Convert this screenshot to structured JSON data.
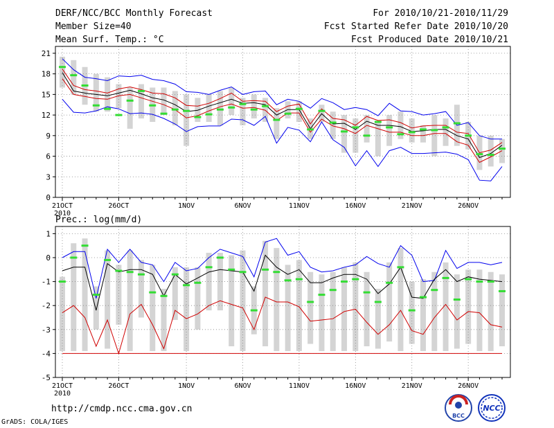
{
  "header": {
    "title": "DERF/NCC/BCC Monthly Forecast",
    "member_size": "Member Size=40",
    "panel1_label": "Mean Surf. Temp.: °C",
    "period": "For 2010/10/21-2010/11/29",
    "started": "Fcst Started Refer Date 2010/10/20",
    "produced": "Fcst Produced Date 2010/10/21"
  },
  "footer": {
    "url": "http://cmdp.ncc.cma.gov.cn",
    "grads": "GrADS: COLA/IGES",
    "logo_bcc": "BCC",
    "logo_ncc": "NCC"
  },
  "colors": {
    "box": "#d4d4d4",
    "median": "#000000",
    "envelope": "#0000ee",
    "quartile": "#d00000",
    "obs": "#33dd33",
    "grid": "#888888"
  },
  "chart_data": [
    {
      "type": "boxplot-line",
      "title": "Mean Surf. Temp.: °C",
      "ylim": [
        0,
        22
      ],
      "yticks": [
        0,
        3,
        6,
        9,
        12,
        15,
        18,
        21
      ],
      "x_labels": [
        "21OCT",
        "26OCT",
        "1NOV",
        "6NOV",
        "11NOV",
        "16NOV",
        "21NOV",
        "26NOV"
      ],
      "x_label_days": [
        1,
        6,
        12,
        17,
        22,
        27,
        32,
        37
      ],
      "year_label": "2010",
      "days": 40,
      "series": [
        {
          "name": "max",
          "color": "#0000ee",
          "values": [
            20.2,
            18.6,
            17.5,
            17.3,
            17.0,
            17.7,
            17.6,
            17.8,
            17.2,
            17.0,
            16.5,
            15.4,
            15.3,
            15.0,
            15.6,
            16.1,
            15.0,
            15.4,
            15.5,
            13.5,
            14.3,
            14.0,
            13.0,
            14.4,
            13.8,
            12.8,
            13.1,
            12.8,
            11.9,
            13.7,
            12.6,
            12.5,
            12.0,
            12.2,
            12.5,
            10.5,
            10.9,
            9.0,
            8.5,
            8.5
          ]
        },
        {
          "name": "upper",
          "color": "#d00000",
          "values": [
            18.7,
            16.3,
            15.7,
            15.5,
            15.2,
            15.8,
            16.1,
            15.7,
            15.2,
            15.1,
            14.5,
            13.4,
            13.3,
            13.7,
            14.4,
            15.2,
            14.0,
            14.1,
            14.0,
            12.5,
            13.3,
            13.6,
            10.7,
            12.9,
            11.5,
            11.3,
            10.5,
            11.8,
            11.2,
            11.3,
            10.9,
            10.1,
            10.4,
            10.5,
            10.5,
            9.5,
            9.3,
            6.5,
            6.9,
            8.0
          ]
        },
        {
          "name": "median",
          "color": "#000000",
          "values": [
            18.2,
            15.5,
            15.2,
            15.0,
            14.8,
            15.2,
            15.6,
            15.1,
            14.5,
            14.2,
            13.5,
            12.5,
            12.7,
            13.3,
            13.8,
            14.3,
            13.7,
            13.8,
            13.5,
            12.0,
            12.8,
            12.8,
            10.0,
            12.2,
            10.7,
            10.8,
            9.9,
            11.1,
            10.5,
            10.5,
            10.3,
            9.6,
            9.7,
            9.9,
            9.9,
            9.0,
            8.5,
            5.8,
            6.4,
            7.6
          ]
        },
        {
          "name": "lower",
          "color": "#d00000",
          "values": [
            17.3,
            15.0,
            14.7,
            14.4,
            14.3,
            14.8,
            15.0,
            14.5,
            14.0,
            13.5,
            12.8,
            11.6,
            11.9,
            12.6,
            13.2,
            13.6,
            13.0,
            13.1,
            12.7,
            11.2,
            12.3,
            12.3,
            9.5,
            11.4,
            10.4,
            10.0,
            9.3,
            10.5,
            10.0,
            9.5,
            9.5,
            9.0,
            9.0,
            9.3,
            9.3,
            8.1,
            7.6,
            5.1,
            5.9,
            6.8
          ]
        },
        {
          "name": "min",
          "color": "#0000ee",
          "values": [
            14.3,
            12.4,
            12.3,
            12.6,
            13.2,
            12.9,
            12.2,
            12.3,
            12.1,
            11.5,
            10.7,
            9.6,
            10.3,
            10.4,
            10.4,
            11.4,
            11.3,
            10.5,
            11.8,
            7.9,
            10.2,
            9.8,
            8.1,
            11.0,
            8.4,
            7.3,
            4.6,
            6.8,
            4.5,
            6.8,
            7.3,
            6.4,
            6.4,
            6.5,
            6.6,
            6.3,
            5.5,
            2.5,
            2.4,
            4.5
          ]
        }
      ],
      "box_ranges": [
        [
          16.0,
          20.5
        ],
        [
          15.0,
          20.0
        ],
        [
          13.5,
          19.0
        ],
        [
          12.5,
          18.0
        ],
        [
          12.5,
          17.5
        ],
        [
          13.0,
          16.5
        ],
        [
          10.0,
          16.0
        ],
        [
          11.5,
          16.5
        ],
        [
          11.0,
          16.0
        ],
        [
          12.0,
          16.0
        ],
        [
          10.5,
          15.5
        ],
        [
          7.5,
          15.0
        ],
        [
          11.0,
          14.5
        ],
        [
          11.0,
          15.0
        ],
        [
          10.5,
          15.5
        ],
        [
          12.0,
          16.0
        ],
        [
          10.5,
          14.5
        ],
        [
          11.5,
          15.0
        ],
        [
          11.0,
          14.5
        ],
        [
          8.5,
          13.0
        ],
        [
          11.5,
          14.0
        ],
        [
          11.0,
          14.0
        ],
        [
          8.5,
          11.5
        ],
        [
          11.0,
          13.5
        ],
        [
          8.5,
          12.5
        ],
        [
          6.5,
          12.0
        ],
        [
          6.5,
          11.5
        ],
        [
          8.0,
          12.0
        ],
        [
          6.0,
          11.0
        ],
        [
          7.5,
          12.0
        ],
        [
          8.5,
          12.5
        ],
        [
          8.0,
          11.5
        ],
        [
          8.0,
          10.5
        ],
        [
          6.0,
          12.0
        ],
        [
          7.5,
          11.5
        ],
        [
          7.5,
          13.5
        ],
        [
          7.0,
          11.0
        ],
        [
          4.0,
          9.0
        ],
        [
          4.5,
          9.0
        ],
        [
          5.0,
          8.5
        ]
      ],
      "obs": [
        19.0,
        17.8,
        16.3,
        13.4,
        12.9,
        12.0,
        14.1,
        15.5,
        13.4,
        12.2,
        12.8,
        12.6,
        11.7,
        12.1,
        12.8,
        13.1,
        13.6,
        12.8,
        13.3,
        11.3,
        12.2,
        12.9,
        9.9,
        12.6,
        10.9,
        9.6,
        10.2,
        9.0,
        11.0,
        10.2,
        9.2,
        9.5,
        9.9,
        9.8,
        10.2,
        10.8,
        9.0,
        6.3,
        6.2,
        7.1
      ]
    },
    {
      "type": "boxplot-line",
      "title": "Prec.: log(mm/d)",
      "ylim": [
        -5,
        1.3
      ],
      "yticks": [
        -5,
        -4,
        -3,
        -2,
        -1,
        0,
        1
      ],
      "x_labels": [
        "21OCT",
        "26OCT",
        "1NOV",
        "6NOV",
        "11NOV",
        "16NOV",
        "21NOV",
        "26NOV"
      ],
      "x_label_days": [
        1,
        6,
        12,
        17,
        22,
        27,
        32,
        37
      ],
      "year_label": "2010",
      "days": 40,
      "series": [
        {
          "name": "max",
          "color": "#0000ee",
          "values": [
            0.0,
            0.25,
            0.25,
            -1.7,
            0.35,
            -0.2,
            0.35,
            -0.2,
            -0.3,
            -1.0,
            -0.2,
            -0.55,
            -0.45,
            0.0,
            0.35,
            0.2,
            0.05,
            -0.8,
            0.65,
            0.8,
            0.1,
            0.25,
            -0.4,
            -0.6,
            -0.55,
            -0.4,
            -0.3,
            0.05,
            -0.25,
            -0.4,
            0.5,
            0.1,
            -1.0,
            -0.95,
            0.3,
            -0.45,
            -0.2,
            -0.2,
            -0.3,
            -0.2
          ]
        },
        {
          "name": "median",
          "color": "#000000",
          "values": [
            -0.55,
            -0.4,
            -0.4,
            -2.2,
            -0.25,
            -0.6,
            -0.5,
            -0.5,
            -0.7,
            -1.6,
            -0.7,
            -1.1,
            -0.85,
            -0.6,
            -0.5,
            -0.55,
            -0.6,
            -1.4,
            0.1,
            -0.4,
            -0.7,
            -0.5,
            -1.05,
            -1.05,
            -0.85,
            -0.7,
            -0.7,
            -0.9,
            -1.5,
            -1.1,
            -0.4,
            -1.65,
            -1.7,
            -0.9,
            -0.5,
            -1.0,
            -0.8,
            -0.9,
            -0.95,
            -1.0
          ]
        },
        {
          "name": "lower",
          "color": "#d00000",
          "values": [
            -2.3,
            -2.0,
            -2.5,
            -3.7,
            -2.6,
            -4.0,
            -2.35,
            -1.95,
            -2.8,
            -3.8,
            -2.2,
            -2.55,
            -2.35,
            -2.0,
            -1.8,
            -1.95,
            -2.1,
            -3.0,
            -1.65,
            -1.85,
            -1.85,
            -2.05,
            -2.65,
            -2.6,
            -2.55,
            -2.25,
            -2.15,
            -2.7,
            -3.2,
            -2.8,
            -2.2,
            -3.05,
            -3.2,
            -2.5,
            -1.95,
            -2.6,
            -2.25,
            -2.3,
            -2.8,
            -2.9
          ]
        },
        {
          "name": "min",
          "color": "#d00000",
          "values": [
            -4.0,
            -4.0,
            -4.0,
            -4.0,
            -4.0,
            -4.0,
            -4.0,
            -4.0,
            -4.0,
            -4.0,
            -4.0,
            -4.0,
            -4.0,
            -4.0,
            -4.0,
            -4.0,
            -4.0,
            -4.0,
            -4.0,
            -4.0,
            -4.0,
            -4.0,
            -4.0,
            -4.0,
            -4.0,
            -4.0,
            -4.0,
            -4.0,
            -4.0,
            -4.0,
            -4.0,
            -4.0,
            -4.0,
            -4.0,
            -4.0,
            -4.0,
            -4.0,
            -4.0,
            -4.0,
            -4.0
          ]
        }
      ],
      "box_ranges": [
        [
          -3.9,
          -0.8
        ],
        [
          -3.9,
          0.6
        ],
        [
          -3.9,
          0.8
        ],
        [
          -3.0,
          -1.2
        ],
        [
          -3.8,
          0.3
        ],
        [
          -2.8,
          -0.3
        ],
        [
          -3.9,
          0.3
        ],
        [
          -2.5,
          -0.1
        ],
        [
          -3.9,
          -0.3
        ],
        [
          -3.9,
          -1.3
        ],
        [
          -2.6,
          -0.4
        ],
        [
          -3.9,
          -0.4
        ],
        [
          -3.0,
          -0.4
        ],
        [
          -2.2,
          0.2
        ],
        [
          -2.2,
          0.2
        ],
        [
          -3.7,
          0.1
        ],
        [
          -3.9,
          0.3
        ],
        [
          -3.2,
          -1.2
        ],
        [
          -3.7,
          0.7
        ],
        [
          -3.9,
          0.4
        ],
        [
          -3.9,
          -0.3
        ],
        [
          -3.9,
          -0.1
        ],
        [
          -3.6,
          -0.6
        ],
        [
          -3.9,
          -0.7
        ],
        [
          -3.9,
          -0.6
        ],
        [
          -3.9,
          -0.4
        ],
        [
          -3.9,
          -0.2
        ],
        [
          -3.7,
          -0.6
        ],
        [
          -3.8,
          -1.3
        ],
        [
          -3.5,
          -0.2
        ],
        [
          -3.9,
          0.4
        ],
        [
          -3.6,
          -1.0
        ],
        [
          -3.9,
          -0.9
        ],
        [
          -3.9,
          -0.6
        ],
        [
          -3.9,
          -0.2
        ],
        [
          -3.8,
          -0.7
        ],
        [
          -3.6,
          -0.5
        ],
        [
          -3.9,
          -0.5
        ],
        [
          -3.9,
          -0.6
        ],
        [
          -3.7,
          -0.7
        ]
      ],
      "obs": [
        -1.0,
        0.0,
        0.5,
        -1.55,
        -0.1,
        -0.55,
        -0.6,
        -0.7,
        -1.45,
        -1.6,
        -0.7,
        -1.15,
        -1.05,
        -0.4,
        0.0,
        -0.5,
        -0.6,
        -2.2,
        -0.5,
        -0.6,
        -0.95,
        -0.9,
        -1.85,
        -1.55,
        -1.35,
        -1.0,
        -0.9,
        -1.45,
        -1.85,
        -1.05,
        -0.4,
        -2.2,
        -1.65,
        -1.35,
        -0.85,
        -1.75,
        -0.9,
        -1.0,
        -1.0,
        -1.4
      ]
    }
  ]
}
